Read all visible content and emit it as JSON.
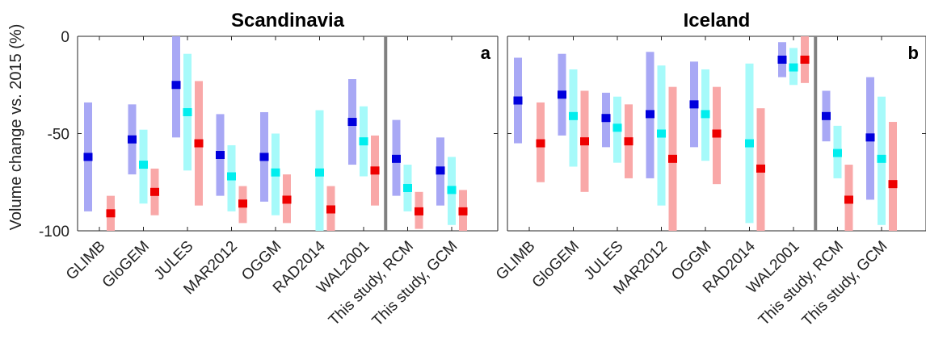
{
  "chart_data": {
    "type": "range-bar",
    "ylabel": "Volume change vs. 2015 (%)",
    "ylim": [
      -100,
      0
    ],
    "yticks": [
      0,
      -50,
      -100
    ],
    "ytick_labels": [
      "0",
      "-50",
      "-100"
    ],
    "series_colors": {
      "s1_bar": "#a8a8f5",
      "s1_marker": "#0000dd",
      "s2_bar": "#a6fafa",
      "s2_marker": "#00eeee",
      "s3_bar": "#f9a8a8",
      "s3_marker": "#ee0000",
      "separator": "#808080"
    },
    "panels": [
      {
        "title": "Scandinavia",
        "label": "a",
        "categories": [
          "GLIMB",
          "GloGEM",
          "JULES",
          "MAR2012",
          "OGGM",
          "RAD2014",
          "WAL2001",
          "This study, RCM",
          "This study, GCM"
        ],
        "separator_after_index": 6,
        "groups": [
          [
            {
              "s": 1,
              "low": -90,
              "high": -34,
              "value": -62
            },
            {
              "s": 3,
              "low": -100,
              "high": -82,
              "value": -91
            }
          ],
          [
            {
              "s": 1,
              "low": -71,
              "high": -35,
              "value": -53
            },
            {
              "s": 2,
              "low": -86,
              "high": -48,
              "value": -66
            },
            {
              "s": 3,
              "low": -92,
              "high": -68,
              "value": -80
            }
          ],
          [
            {
              "s": 1,
              "low": -52,
              "high": 0,
              "value": -25
            },
            {
              "s": 2,
              "low": -69,
              "high": -9,
              "value": -39
            },
            {
              "s": 3,
              "low": -87,
              "high": -23,
              "value": -55
            }
          ],
          [
            {
              "s": 1,
              "low": -82,
              "high": -40,
              "value": -61
            },
            {
              "s": 2,
              "low": -90,
              "high": -56,
              "value": -72
            },
            {
              "s": 3,
              "low": -96,
              "high": -77,
              "value": -86
            }
          ],
          [
            {
              "s": 1,
              "low": -85,
              "high": -39,
              "value": -62
            },
            {
              "s": 2,
              "low": -92,
              "high": -50,
              "value": -70
            },
            {
              "s": 3,
              "low": -96,
              "high": -71,
              "value": -84
            }
          ],
          [
            {
              "s": 2,
              "low": -100,
              "high": -38,
              "value": -70
            },
            {
              "s": 3,
              "low": -100,
              "high": -77,
              "value": -89
            }
          ],
          [
            {
              "s": 1,
              "low": -66,
              "high": -22,
              "value": -44
            },
            {
              "s": 2,
              "low": -72,
              "high": -36,
              "value": -54
            },
            {
              "s": 3,
              "low": -87,
              "high": -51,
              "value": -69
            }
          ],
          [
            {
              "s": 1,
              "low": -82,
              "high": -43,
              "value": -63
            },
            {
              "s": 2,
              "low": -90,
              "high": -66,
              "value": -78
            },
            {
              "s": 3,
              "low": -99,
              "high": -80,
              "value": -90
            }
          ],
          [
            {
              "s": 1,
              "low": -87,
              "high": -52,
              "value": -69
            },
            {
              "s": 2,
              "low": -97,
              "high": -62,
              "value": -79
            },
            {
              "s": 3,
              "low": -100,
              "high": -79,
              "value": -90
            }
          ]
        ]
      },
      {
        "title": "Iceland",
        "label": "b",
        "categories": [
          "GLIMB",
          "GloGEM",
          "JULES",
          "MAR2012",
          "OGGM",
          "RAD2014",
          "WAL2001",
          "This study, RCM",
          "This study, GCM"
        ],
        "separator_after_index": 6,
        "groups": [
          [
            {
              "s": 1,
              "low": -55,
              "high": -11,
              "value": -33
            },
            {
              "s": 3,
              "low": -75,
              "high": -34,
              "value": -55
            }
          ],
          [
            {
              "s": 1,
              "low": -51,
              "high": -9,
              "value": -30
            },
            {
              "s": 2,
              "low": -67,
              "high": -17,
              "value": -41
            },
            {
              "s": 3,
              "low": -80,
              "high": -28,
              "value": -54
            }
          ],
          [
            {
              "s": 1,
              "low": -57,
              "high": -29,
              "value": -42
            },
            {
              "s": 2,
              "low": -65,
              "high": -31,
              "value": -47
            },
            {
              "s": 3,
              "low": -73,
              "high": -35,
              "value": -54
            }
          ],
          [
            {
              "s": 1,
              "low": -73,
              "high": -8,
              "value": -40
            },
            {
              "s": 2,
              "low": -87,
              "high": -15,
              "value": -50
            },
            {
              "s": 3,
              "low": -100,
              "high": -26,
              "value": -63
            }
          ],
          [
            {
              "s": 1,
              "low": -57,
              "high": -13,
              "value": -35
            },
            {
              "s": 2,
              "low": -64,
              "high": -17,
              "value": -40
            },
            {
              "s": 3,
              "low": -76,
              "high": -26,
              "value": -50
            }
          ],
          [
            {
              "s": 2,
              "low": -96,
              "high": -14,
              "value": -55
            },
            {
              "s": 3,
              "low": -100,
              "high": -37,
              "value": -68
            }
          ],
          [
            {
              "s": 1,
              "low": -21,
              "high": -3,
              "value": -12
            },
            {
              "s": 2,
              "low": -25,
              "high": -6,
              "value": -16
            },
            {
              "s": 3,
              "low": -24,
              "high": 0,
              "value": -12
            }
          ],
          [
            {
              "s": 1,
              "low": -54,
              "high": -28,
              "value": -41
            },
            {
              "s": 2,
              "low": -73,
              "high": -46,
              "value": -60
            },
            {
              "s": 3,
              "low": -100,
              "high": -66,
              "value": -84
            }
          ],
          [
            {
              "s": 1,
              "low": -84,
              "high": -21,
              "value": -52
            },
            {
              "s": 2,
              "low": -97,
              "high": -31,
              "value": -63
            },
            {
              "s": 3,
              "low": -100,
              "high": -44,
              "value": -76
            }
          ]
        ]
      }
    ]
  }
}
